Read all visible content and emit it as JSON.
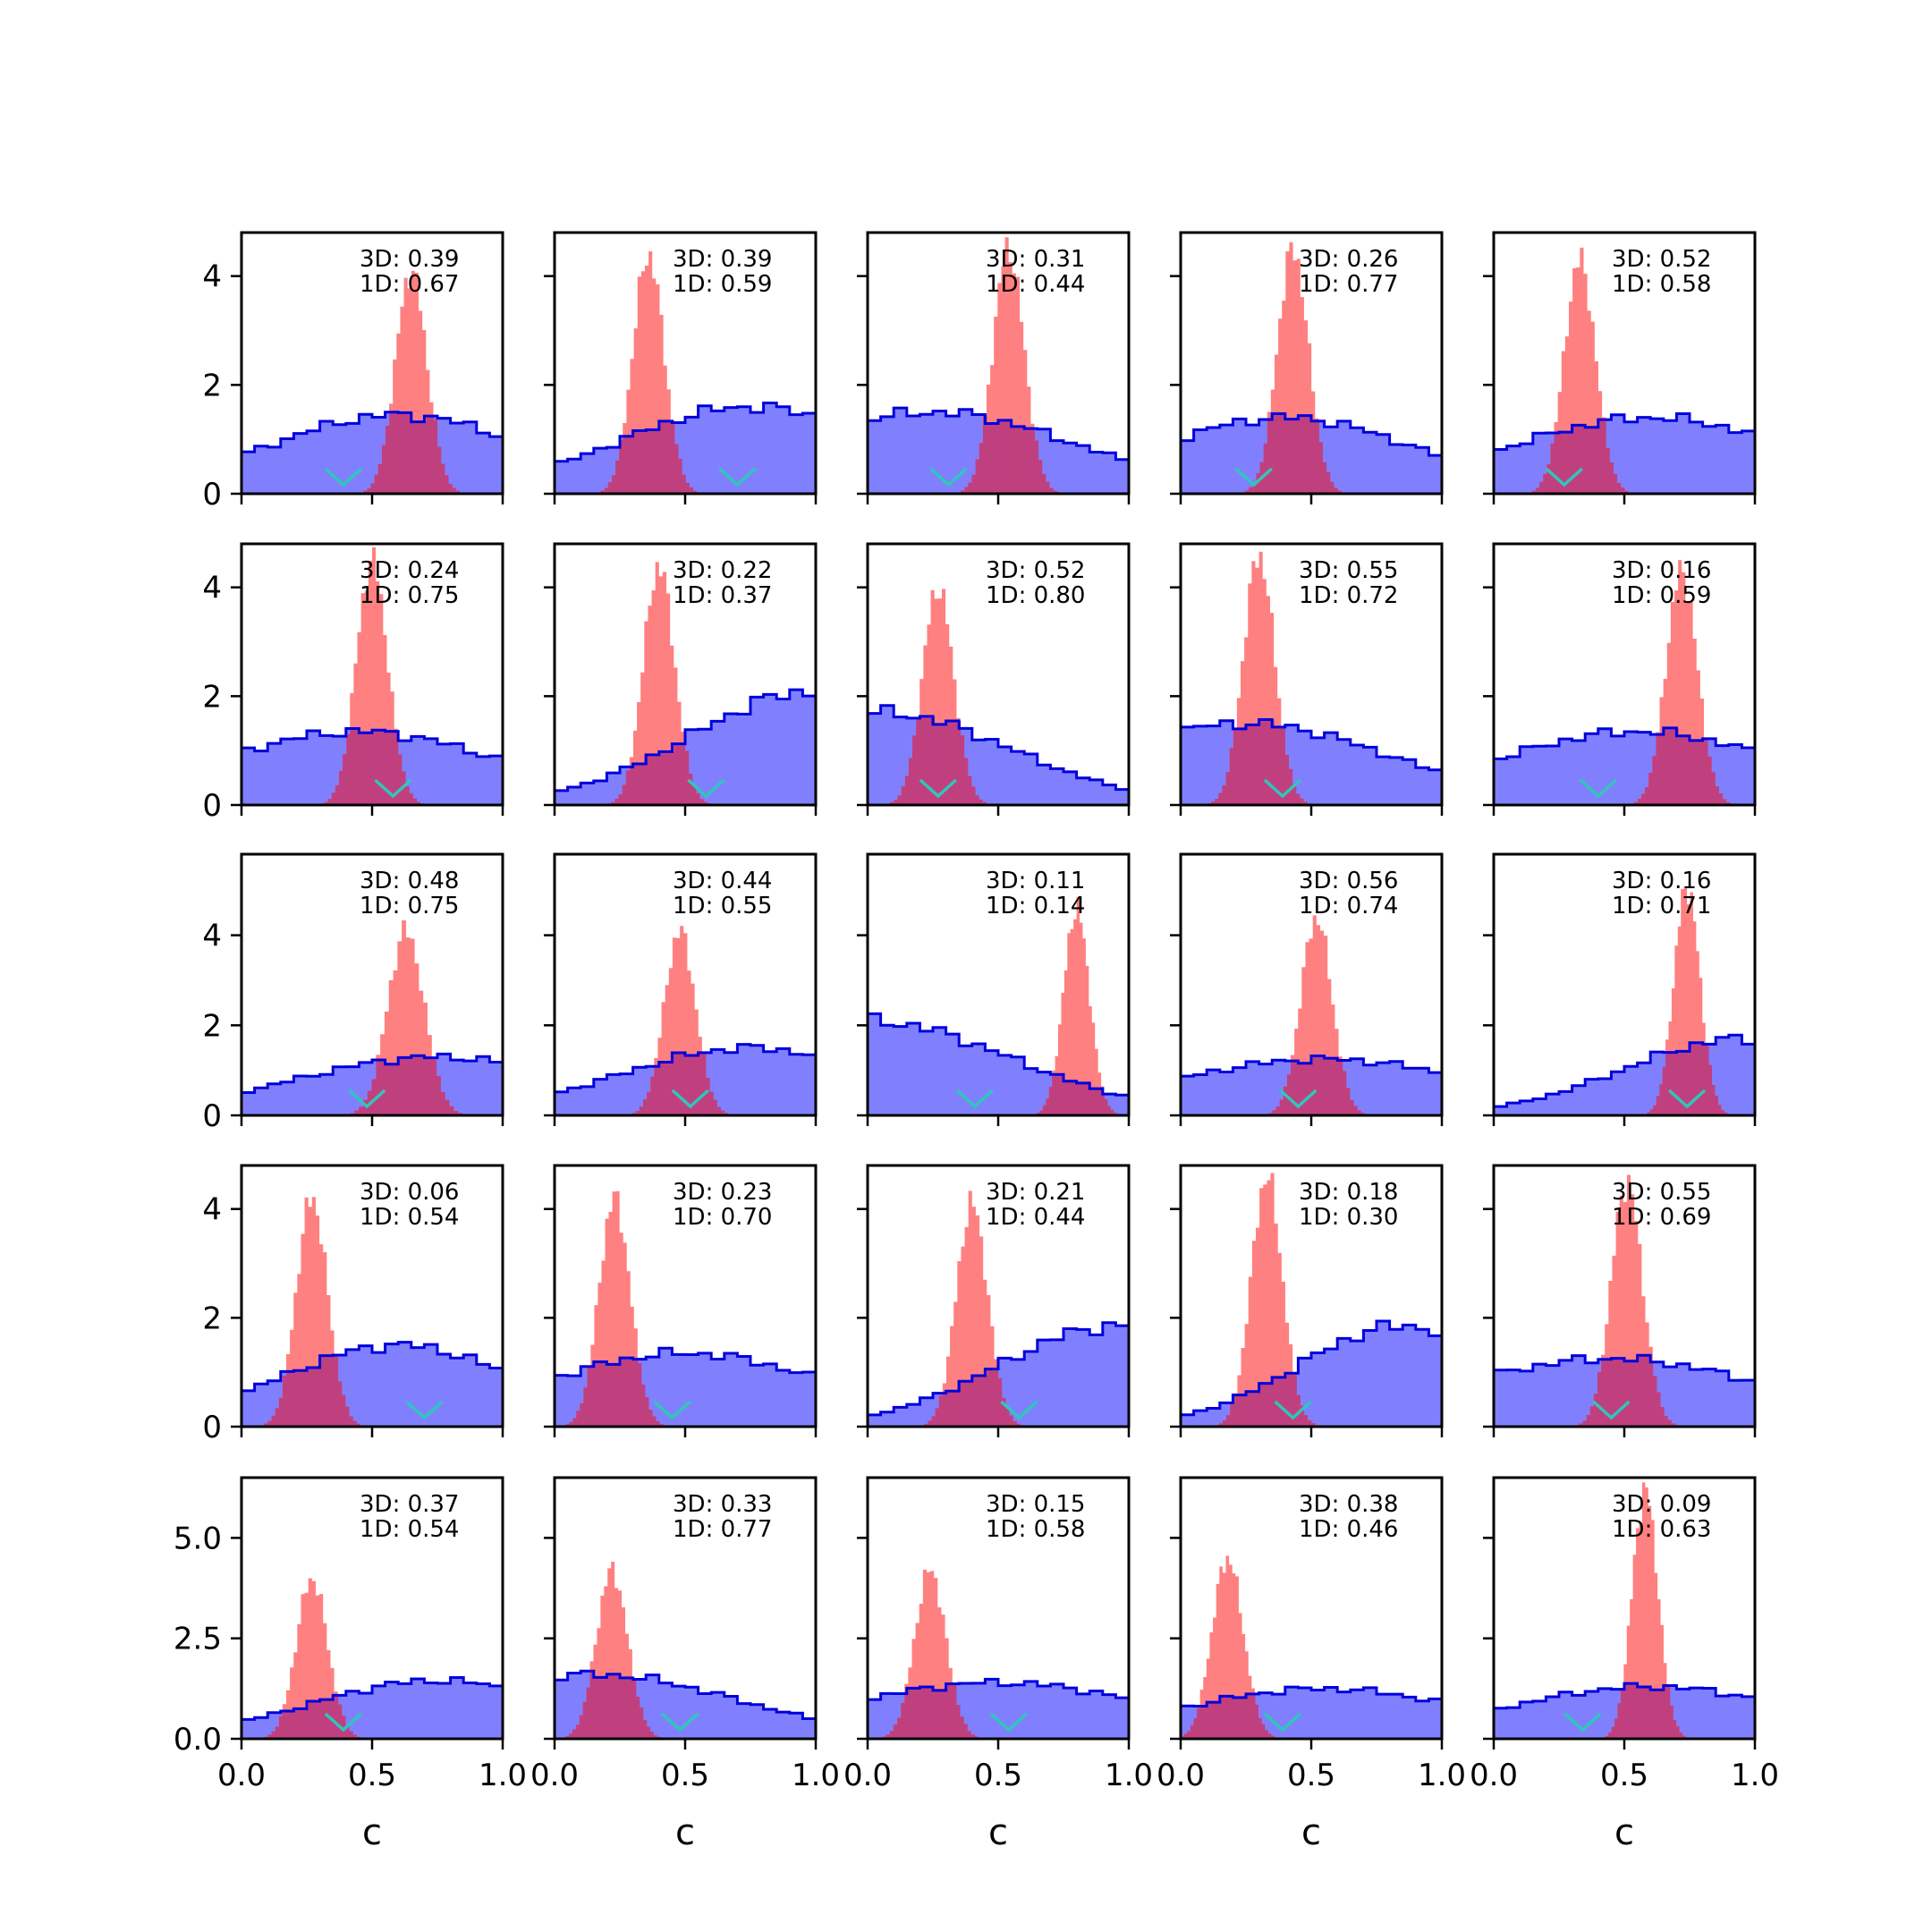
{
  "figure": {
    "rows": 5,
    "cols": 5,
    "x_label": "c",
    "x_ticks": [
      0.0,
      0.5,
      1.0
    ],
    "x_tick_labels": [
      "0.0",
      "0.5",
      "1.0"
    ],
    "colors": {
      "blue_fill": "#8080ff",
      "blue_edge": "#0000dd",
      "red_fill": "#ff8080",
      "overlap": "#c0407f",
      "overlap_edge": "#7a0a7a",
      "marker": "#2ec7b9",
      "axes": "#000000"
    },
    "row_y_axes": [
      {
        "ylim": [
          0,
          4.8
        ],
        "ticks": [
          0,
          2,
          4
        ],
        "tick_labels": [
          "0",
          "2",
          "4"
        ]
      },
      {
        "ylim": [
          0,
          4.8
        ],
        "ticks": [
          0,
          2,
          4
        ],
        "tick_labels": [
          "0",
          "2",
          "4"
        ]
      },
      {
        "ylim": [
          0,
          5.8
        ],
        "ticks": [
          0,
          2,
          4
        ],
        "tick_labels": [
          "0",
          "2",
          "4"
        ]
      },
      {
        "ylim": [
          0,
          4.8
        ],
        "ticks": [
          0,
          2,
          4
        ],
        "tick_labels": [
          "0",
          "2",
          "4"
        ]
      },
      {
        "ylim": [
          0,
          6.5
        ],
        "ticks": [
          0,
          2.5,
          5
        ],
        "tick_labels": [
          "0.0",
          "2.5",
          "5.0"
        ]
      }
    ]
  },
  "chart_data": [
    {
      "type": "bar",
      "row": 0,
      "col": 0,
      "annotation_3d": "3D: 0.39",
      "annotation_1d": "1D: 0.67",
      "prior_mean": 0.6,
      "prior_peak": 1.45,
      "prior_spread": 0.5,
      "post_mean": 0.65,
      "post_peak": 4.1,
      "post_sd": 0.06,
      "marker_x": 0.39
    },
    {
      "type": "bar",
      "row": 0,
      "col": 1,
      "annotation_3d": "3D: 0.39",
      "annotation_1d": "1D: 0.59",
      "prior_mean": 0.75,
      "prior_peak": 1.6,
      "prior_spread": 0.5,
      "post_mean": 0.36,
      "post_peak": 4.4,
      "post_sd": 0.06,
      "marker_x": 0.7
    },
    {
      "type": "bar",
      "row": 0,
      "col": 2,
      "annotation_3d": "3D: 0.31",
      "annotation_1d": "1D: 0.44",
      "prior_mean": 0.25,
      "prior_peak": 1.5,
      "prior_spread": 0.55,
      "post_mean": 0.54,
      "post_peak": 4.5,
      "post_sd": 0.06,
      "marker_x": 0.31
    },
    {
      "type": "bar",
      "row": 0,
      "col": 3,
      "annotation_3d": "3D: 0.26",
      "annotation_1d": "1D: 0.77",
      "prior_mean": 0.4,
      "prior_peak": 1.4,
      "prior_spread": 0.5,
      "post_mean": 0.43,
      "post_peak": 4.5,
      "post_sd": 0.06,
      "marker_x": 0.28
    },
    {
      "type": "bar",
      "row": 0,
      "col": 4,
      "annotation_3d": "3D: 0.52",
      "annotation_1d": "1D: 0.58",
      "prior_mean": 0.6,
      "prior_peak": 1.4,
      "prior_spread": 0.55,
      "post_mean": 0.33,
      "post_peak": 4.3,
      "post_sd": 0.06,
      "marker_x": 0.27
    },
    {
      "type": "bar",
      "row": 1,
      "col": 0,
      "annotation_3d": "3D: 0.24",
      "annotation_1d": "1D: 0.75",
      "prior_mean": 0.45,
      "prior_peak": 1.35,
      "prior_spread": 0.55,
      "post_mean": 0.5,
      "post_peak": 4.5,
      "post_sd": 0.06,
      "marker_x": 0.58
    },
    {
      "type": "bar",
      "row": 1,
      "col": 1,
      "annotation_3d": "3D: 0.22",
      "annotation_1d": "1D: 0.37",
      "prior_mean": 1.0,
      "prior_peak": 2.1,
      "prior_spread": 0.48,
      "post_mean": 0.4,
      "post_peak": 4.4,
      "post_sd": 0.06,
      "marker_x": 0.58
    },
    {
      "type": "bar",
      "row": 1,
      "col": 2,
      "annotation_3d": "3D: 0.52",
      "annotation_1d": "1D: 0.80",
      "prior_mean": 0.05,
      "prior_peak": 1.7,
      "prior_spread": 0.5,
      "post_mean": 0.27,
      "post_peak": 4.0,
      "post_sd": 0.06,
      "marker_x": 0.27
    },
    {
      "type": "bar",
      "row": 1,
      "col": 3,
      "annotation_3d": "3D: 0.55",
      "annotation_1d": "1D: 0.72",
      "prior_mean": 0.25,
      "prior_peak": 1.5,
      "prior_spread": 0.55,
      "post_mean": 0.3,
      "post_peak": 4.6,
      "post_sd": 0.06,
      "marker_x": 0.39
    },
    {
      "type": "bar",
      "row": 1,
      "col": 4,
      "annotation_3d": "3D: 0.16",
      "annotation_1d": "1D: 0.59",
      "prior_mean": 0.55,
      "prior_peak": 1.35,
      "prior_spread": 0.55,
      "post_mean": 0.72,
      "post_peak": 4.3,
      "post_sd": 0.06,
      "marker_x": 0.4
    },
    {
      "type": "bar",
      "row": 2,
      "col": 0,
      "annotation_3d": "3D: 0.48",
      "annotation_1d": "1D: 0.75",
      "prior_mean": 0.75,
      "prior_peak": 1.3,
      "prior_spread": 0.55,
      "post_mean": 0.63,
      "post_peak": 4.1,
      "post_sd": 0.07,
      "marker_x": 0.48
    },
    {
      "type": "bar",
      "row": 2,
      "col": 1,
      "annotation_3d": "3D: 0.44",
      "annotation_1d": "1D: 0.55",
      "prior_mean": 0.75,
      "prior_peak": 1.5,
      "prior_spread": 0.5,
      "post_mean": 0.48,
      "post_peak": 4.1,
      "post_sd": 0.06,
      "marker_x": 0.52
    },
    {
      "type": "bar",
      "row": 2,
      "col": 2,
      "annotation_3d": "3D: 0.11",
      "annotation_1d": "1D: 0.14",
      "prior_mean": 0.0,
      "prior_peak": 2.1,
      "prior_spread": 0.55,
      "post_mean": 0.8,
      "post_peak": 4.6,
      "post_sd": 0.05,
      "marker_x": 0.41
    },
    {
      "type": "bar",
      "row": 2,
      "col": 3,
      "annotation_3d": "3D: 0.56",
      "annotation_1d": "1D: 0.74",
      "prior_mean": 0.55,
      "prior_peak": 1.25,
      "prior_spread": 0.6,
      "post_mean": 0.52,
      "post_peak": 4.4,
      "post_sd": 0.06,
      "marker_x": 0.45
    },
    {
      "type": "bar",
      "row": 2,
      "col": 4,
      "annotation_3d": "3D: 0.16",
      "annotation_1d": "1D: 0.71",
      "prior_mean": 0.95,
      "prior_peak": 1.7,
      "prior_spread": 0.45,
      "post_mean": 0.74,
      "post_peak": 5.1,
      "post_sd": 0.05,
      "marker_x": 0.74
    },
    {
      "type": "bar",
      "row": 3,
      "col": 0,
      "annotation_3d": "3D: 0.06",
      "annotation_1d": "1D: 0.54",
      "prior_mean": 0.6,
      "prior_peak": 1.5,
      "prior_spread": 0.45,
      "post_mean": 0.27,
      "post_peak": 4.2,
      "post_sd": 0.06,
      "marker_x": 0.7
    },
    {
      "type": "bar",
      "row": 3,
      "col": 1,
      "annotation_3d": "3D: 0.23",
      "annotation_1d": "1D: 0.70",
      "prior_mean": 0.5,
      "prior_peak": 1.35,
      "prior_spread": 0.55,
      "post_mean": 0.23,
      "post_peak": 4.2,
      "post_sd": 0.06,
      "marker_x": 0.45
    },
    {
      "type": "bar",
      "row": 3,
      "col": 2,
      "annotation_3d": "3D: 0.21",
      "annotation_1d": "1D: 0.44",
      "prior_mean": 0.95,
      "prior_peak": 1.85,
      "prior_spread": 0.45,
      "post_mean": 0.4,
      "post_peak": 4.1,
      "post_sd": 0.06,
      "marker_x": 0.58
    },
    {
      "type": "bar",
      "row": 3,
      "col": 3,
      "annotation_3d": "3D: 0.18",
      "annotation_1d": "1D: 0.30",
      "prior_mean": 0.85,
      "prior_peak": 1.85,
      "prior_spread": 0.4,
      "post_mean": 0.33,
      "post_peak": 4.6,
      "post_sd": 0.06,
      "marker_x": 0.43
    },
    {
      "type": "bar",
      "row": 3,
      "col": 4,
      "annotation_3d": "3D: 0.55",
      "annotation_1d": "1D: 0.69",
      "prior_mean": 0.45,
      "prior_peak": 1.25,
      "prior_spread": 0.6,
      "post_mean": 0.51,
      "post_peak": 4.5,
      "post_sd": 0.06,
      "marker_x": 0.45
    },
    {
      "type": "bar",
      "row": 4,
      "col": 0,
      "annotation_3d": "3D: 0.37",
      "annotation_1d": "1D: 0.54",
      "prior_mean": 0.75,
      "prior_peak": 1.45,
      "prior_spread": 0.48,
      "post_mean": 0.27,
      "post_peak": 4.0,
      "post_sd": 0.06,
      "marker_x": 0.39
    },
    {
      "type": "bar",
      "row": 4,
      "col": 1,
      "annotation_3d": "3D: 0.33",
      "annotation_1d": "1D: 0.77",
      "prior_mean": 0.15,
      "prior_peak": 1.6,
      "prior_spread": 0.55,
      "post_mean": 0.22,
      "post_peak": 4.2,
      "post_sd": 0.06,
      "marker_x": 0.48
    },
    {
      "type": "bar",
      "row": 4,
      "col": 2,
      "annotation_3d": "3D: 0.15",
      "annotation_1d": "1D: 0.58",
      "prior_mean": 0.5,
      "prior_peak": 1.4,
      "prior_spread": 0.6,
      "post_mean": 0.24,
      "post_peak": 4.2,
      "post_sd": 0.06,
      "marker_x": 0.54
    },
    {
      "type": "bar",
      "row": 4,
      "col": 3,
      "annotation_3d": "3D: 0.38",
      "annotation_1d": "1D: 0.46",
      "prior_mean": 0.55,
      "prior_peak": 1.25,
      "prior_spread": 0.55,
      "post_mean": 0.18,
      "post_peak": 4.5,
      "post_sd": 0.06,
      "marker_x": 0.39
    },
    {
      "type": "bar",
      "row": 4,
      "col": 4,
      "annotation_3d": "3D: 0.09",
      "annotation_1d": "1D: 0.63",
      "prior_mean": 0.6,
      "prior_peak": 1.3,
      "prior_spread": 0.55,
      "post_mean": 0.58,
      "post_peak": 6.2,
      "post_sd": 0.05,
      "marker_x": 0.34
    }
  ]
}
